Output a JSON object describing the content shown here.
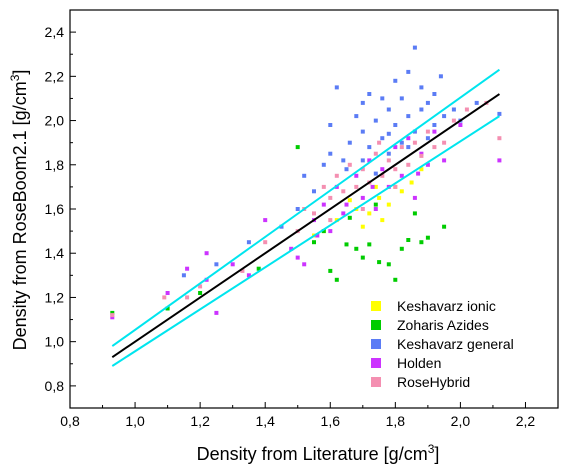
{
  "chart_data": {
    "type": "scatter",
    "title": "",
    "xlabel": "Density from Literature [g/cm",
    "xlabel_sup": "3",
    "xlabel_end": "]",
    "ylabel": "Density from RoseBoom2.1 [g/cm",
    "ylabel_sup": "3",
    "ylabel_end": "]",
    "xlim": [
      0.8,
      2.3
    ],
    "ylim": [
      0.7,
      2.5
    ],
    "xticks": [
      "0,8",
      "1,0",
      "1,2",
      "1,4",
      "1,6",
      "1,8",
      "2,0",
      "2,2"
    ],
    "yticks": [
      "0,8",
      "1,0",
      "1,2",
      "1,4",
      "1,6",
      "1,8",
      "2,0",
      "2,2",
      "2,4"
    ],
    "grid": false,
    "legend_position": "bottom-right",
    "series": [
      {
        "name": "Keshavarz ionic",
        "color": "#ffff00",
        "points": [
          [
            1.55,
            1.48
          ],
          [
            1.62,
            1.55
          ],
          [
            1.68,
            1.6
          ],
          [
            1.72,
            1.58
          ],
          [
            1.75,
            1.65
          ],
          [
            1.78,
            1.62
          ],
          [
            1.8,
            1.7
          ],
          [
            1.82,
            1.68
          ],
          [
            1.85,
            1.72
          ],
          [
            1.7,
            1.52
          ],
          [
            1.66,
            1.64
          ],
          [
            1.74,
            1.7
          ],
          [
            1.88,
            1.78
          ],
          [
            1.76,
            1.55
          ],
          [
            1.58,
            1.5
          ]
        ]
      },
      {
        "name": "Zoharis Azides",
        "color": "#00cc00",
        "points": [
          [
            0.93,
            1.13
          ],
          [
            1.1,
            1.15
          ],
          [
            1.2,
            1.22
          ],
          [
            1.38,
            1.33
          ],
          [
            1.5,
            1.88
          ],
          [
            1.55,
            1.45
          ],
          [
            1.6,
            1.32
          ],
          [
            1.62,
            1.28
          ],
          [
            1.65,
            1.44
          ],
          [
            1.68,
            1.42
          ],
          [
            1.7,
            1.38
          ],
          [
            1.72,
            1.44
          ],
          [
            1.75,
            1.36
          ],
          [
            1.78,
            1.35
          ],
          [
            1.8,
            1.28
          ],
          [
            1.82,
            1.42
          ],
          [
            1.84,
            1.46
          ],
          [
            1.88,
            1.45
          ],
          [
            1.9,
            1.47
          ],
          [
            1.95,
            1.52
          ],
          [
            1.58,
            1.5
          ],
          [
            1.66,
            1.56
          ],
          [
            1.74,
            1.62
          ],
          [
            1.86,
            1.58
          ]
        ]
      },
      {
        "name": "Keshavarz general",
        "color": "#5b7cf5",
        "points": [
          [
            1.15,
            1.3
          ],
          [
            1.25,
            1.35
          ],
          [
            1.35,
            1.45
          ],
          [
            1.45,
            1.52
          ],
          [
            1.5,
            1.6
          ],
          [
            1.52,
            1.75
          ],
          [
            1.55,
            1.68
          ],
          [
            1.58,
            1.8
          ],
          [
            1.6,
            1.85
          ],
          [
            1.6,
            1.98
          ],
          [
            1.62,
            2.15
          ],
          [
            1.64,
            1.82
          ],
          [
            1.66,
            1.9
          ],
          [
            1.68,
            2.02
          ],
          [
            1.7,
            1.95
          ],
          [
            1.7,
            2.08
          ],
          [
            1.72,
            1.88
          ],
          [
            1.72,
            2.12
          ],
          [
            1.74,
            2.0
          ],
          [
            1.76,
            1.92
          ],
          [
            1.76,
            2.1
          ],
          [
            1.78,
            2.05
          ],
          [
            1.78,
            1.85
          ],
          [
            1.8,
            2.18
          ],
          [
            1.8,
            1.98
          ],
          [
            1.82,
            2.1
          ],
          [
            1.82,
            1.9
          ],
          [
            1.84,
            2.22
          ],
          [
            1.84,
            2.02
          ],
          [
            1.86,
            2.33
          ],
          [
            1.86,
            1.95
          ],
          [
            1.88,
            2.15
          ],
          [
            1.88,
            2.05
          ],
          [
            1.9,
            2.08
          ],
          [
            1.9,
            1.92
          ],
          [
            1.92,
            2.12
          ],
          [
            1.92,
            1.98
          ],
          [
            1.94,
            2.2
          ],
          [
            1.95,
            2.02
          ],
          [
            1.98,
            2.05
          ],
          [
            2.0,
            2.0
          ],
          [
            2.05,
            2.08
          ],
          [
            2.12,
            2.03
          ],
          [
            1.65,
            1.78
          ],
          [
            1.74,
            1.76
          ],
          [
            1.78,
            1.94
          ],
          [
            1.84,
            1.88
          ],
          [
            1.7,
            1.82
          ]
        ]
      },
      {
        "name": "Holden",
        "color": "#cc33ff",
        "points": [
          [
            0.93,
            1.11
          ],
          [
            1.1,
            1.22
          ],
          [
            1.16,
            1.33
          ],
          [
            1.22,
            1.4
          ],
          [
            1.22,
            1.28
          ],
          [
            1.25,
            1.13
          ],
          [
            1.3,
            1.35
          ],
          [
            1.35,
            1.3
          ],
          [
            1.4,
            1.55
          ],
          [
            1.48,
            1.42
          ],
          [
            1.5,
            1.38
          ],
          [
            1.52,
            1.35
          ],
          [
            1.55,
            1.55
          ],
          [
            1.58,
            1.62
          ],
          [
            1.6,
            1.5
          ],
          [
            1.62,
            1.7
          ],
          [
            1.65,
            1.62
          ],
          [
            1.68,
            1.75
          ],
          [
            1.7,
            1.65
          ],
          [
            1.72,
            1.82
          ],
          [
            1.74,
            1.6
          ],
          [
            1.76,
            1.78
          ],
          [
            1.78,
            1.7
          ],
          [
            1.8,
            1.88
          ],
          [
            1.82,
            1.75
          ],
          [
            1.84,
            1.92
          ],
          [
            1.86,
            1.65
          ],
          [
            1.88,
            1.85
          ],
          [
            1.9,
            1.8
          ],
          [
            1.92,
            1.95
          ],
          [
            1.95,
            1.82
          ],
          [
            2.0,
            1.98
          ],
          [
            2.12,
            1.82
          ],
          [
            1.56,
            1.48
          ],
          [
            1.64,
            1.58
          ],
          [
            1.73,
            1.7
          ],
          [
            1.87,
            1.76
          ]
        ]
      },
      {
        "name": "RoseHybrid",
        "color": "#f48fb1",
        "points": [
          [
            0.93,
            1.12
          ],
          [
            1.09,
            1.2
          ],
          [
            1.16,
            1.2
          ],
          [
            1.2,
            1.25
          ],
          [
            1.33,
            1.32
          ],
          [
            1.4,
            1.45
          ],
          [
            1.5,
            1.5
          ],
          [
            1.52,
            1.6
          ],
          [
            1.55,
            1.58
          ],
          [
            1.58,
            1.7
          ],
          [
            1.6,
            1.65
          ],
          [
            1.62,
            1.75
          ],
          [
            1.64,
            1.68
          ],
          [
            1.66,
            1.8
          ],
          [
            1.68,
            1.7
          ],
          [
            1.7,
            1.78
          ],
          [
            1.72,
            1.72
          ],
          [
            1.74,
            1.85
          ],
          [
            1.76,
            1.75
          ],
          [
            1.78,
            1.82
          ],
          [
            1.8,
            1.78
          ],
          [
            1.82,
            1.88
          ],
          [
            1.84,
            1.8
          ],
          [
            1.86,
            1.9
          ],
          [
            1.88,
            1.84
          ],
          [
            1.9,
            1.95
          ],
          [
            1.92,
            1.88
          ],
          [
            1.95,
            1.9
          ],
          [
            1.98,
            2.0
          ],
          [
            2.02,
            2.05
          ],
          [
            2.08,
            2.08
          ],
          [
            2.12,
            1.92
          ],
          [
            1.6,
            1.55
          ],
          [
            1.7,
            1.6
          ],
          [
            1.8,
            1.7
          ],
          [
            1.75,
            1.9
          ]
        ]
      }
    ],
    "lines": [
      {
        "color": "#000000",
        "points": [
          [
            0.93,
            0.93
          ],
          [
            2.12,
            2.12
          ]
        ]
      },
      {
        "color": "#00e5ee",
        "points": [
          [
            0.93,
            0.98
          ],
          [
            2.12,
            2.23
          ]
        ]
      },
      {
        "color": "#00e5ee",
        "points": [
          [
            0.93,
            0.89
          ],
          [
            2.12,
            2.02
          ]
        ]
      }
    ]
  }
}
